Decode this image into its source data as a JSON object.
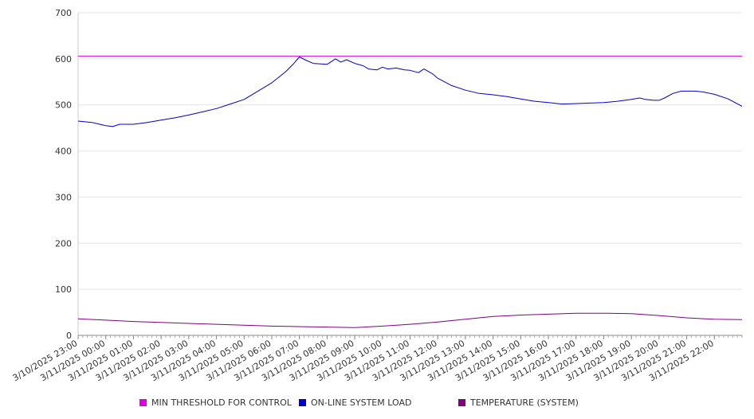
{
  "chart_data": {
    "type": "line",
    "title": "",
    "xlabel": "",
    "ylabel": "",
    "ylim": [
      0,
      700
    ],
    "yticks": [
      0,
      100,
      200,
      300,
      400,
      500,
      600,
      700
    ],
    "grid": true,
    "legend_position": "bottom",
    "x_tick_labels": [
      "3/10/2025 23:00",
      "3/11/2025 00:00",
      "3/11/2025 01:00",
      "3/11/2025 02:00",
      "3/11/2025 03:00",
      "3/11/2025 04:00",
      "3/11/2025 05:00",
      "3/11/2025 06:00",
      "3/11/2025 07:00",
      "3/11/2025 08:00",
      "3/11/2025 09:00",
      "3/11/2025 10:00",
      "3/11/2025 11:00",
      "3/11/2025 12:00",
      "3/11/2025 13:00",
      "3/11/2025 14:00",
      "3/11/2025 15:00",
      "3/11/2025 16:00",
      "3/11/2025 17:00",
      "3/11/2025 18:00",
      "3/11/2025 19:00",
      "3/11/2025 20:00",
      "3/11/2025 21:00",
      "3/11/2025 22:00"
    ],
    "x_hours": [
      0,
      24
    ],
    "series": [
      {
        "name": "MIN THRESHOLD FOR CONTROL",
        "color": "#e000e0",
        "points": [
          [
            0,
            606
          ],
          [
            24,
            606
          ]
        ]
      },
      {
        "name": "ON-LINE SYSTEM LOAD",
        "color": "#0000cc",
        "points": [
          [
            0,
            465
          ],
          [
            0.5,
            462
          ],
          [
            1,
            455
          ],
          [
            1.25,
            453
          ],
          [
            1.5,
            458
          ],
          [
            2,
            458
          ],
          [
            2.5,
            462
          ],
          [
            3,
            467
          ],
          [
            3.5,
            472
          ],
          [
            4,
            478
          ],
          [
            4.5,
            485
          ],
          [
            5,
            492
          ],
          [
            5.5,
            502
          ],
          [
            6,
            512
          ],
          [
            6.5,
            530
          ],
          [
            7,
            548
          ],
          [
            7.5,
            572
          ],
          [
            7.8,
            590
          ],
          [
            8,
            604
          ],
          [
            8.2,
            598
          ],
          [
            8.5,
            590
          ],
          [
            9,
            588
          ],
          [
            9.3,
            600
          ],
          [
            9.5,
            593
          ],
          [
            9.7,
            598
          ],
          [
            10,
            590
          ],
          [
            10.3,
            585
          ],
          [
            10.5,
            578
          ],
          [
            10.8,
            576
          ],
          [
            11,
            582
          ],
          [
            11.2,
            578
          ],
          [
            11.5,
            580
          ],
          [
            11.8,
            576
          ],
          [
            12,
            575
          ],
          [
            12.3,
            570
          ],
          [
            12.5,
            578
          ],
          [
            12.8,
            568
          ],
          [
            13,
            558
          ],
          [
            13.5,
            542
          ],
          [
            14,
            532
          ],
          [
            14.5,
            525
          ],
          [
            15,
            522
          ],
          [
            15.5,
            518
          ],
          [
            16,
            513
          ],
          [
            16.5,
            508
          ],
          [
            17,
            505
          ],
          [
            17.5,
            502
          ],
          [
            18,
            503
          ],
          [
            18.5,
            504
          ],
          [
            19,
            505
          ],
          [
            19.5,
            508
          ],
          [
            20,
            512
          ],
          [
            20.3,
            515
          ],
          [
            20.5,
            512
          ],
          [
            20.8,
            510
          ],
          [
            21,
            510
          ],
          [
            21.2,
            515
          ],
          [
            21.5,
            525
          ],
          [
            21.8,
            530
          ],
          [
            22,
            530
          ],
          [
            22.3,
            530
          ],
          [
            22.6,
            528
          ],
          [
            23,
            523
          ],
          [
            23.5,
            513
          ],
          [
            24,
            497
          ]
        ]
      },
      {
        "name": "TEMPERATURE (SYSTEM)",
        "color": "#800080",
        "points": [
          [
            0,
            36
          ],
          [
            1,
            33
          ],
          [
            2,
            30
          ],
          [
            3,
            28
          ],
          [
            4,
            26
          ],
          [
            5,
            24
          ],
          [
            6,
            22
          ],
          [
            7,
            20
          ],
          [
            8,
            19
          ],
          [
            9,
            18
          ],
          [
            10,
            17
          ],
          [
            11,
            20
          ],
          [
            12,
            24
          ],
          [
            13,
            29
          ],
          [
            14,
            35
          ],
          [
            15,
            41
          ],
          [
            16,
            44
          ],
          [
            17,
            46
          ],
          [
            18,
            48
          ],
          [
            19,
            48
          ],
          [
            20,
            47
          ],
          [
            21,
            43
          ],
          [
            22,
            38
          ],
          [
            23,
            35
          ],
          [
            24,
            34
          ]
        ]
      }
    ]
  }
}
